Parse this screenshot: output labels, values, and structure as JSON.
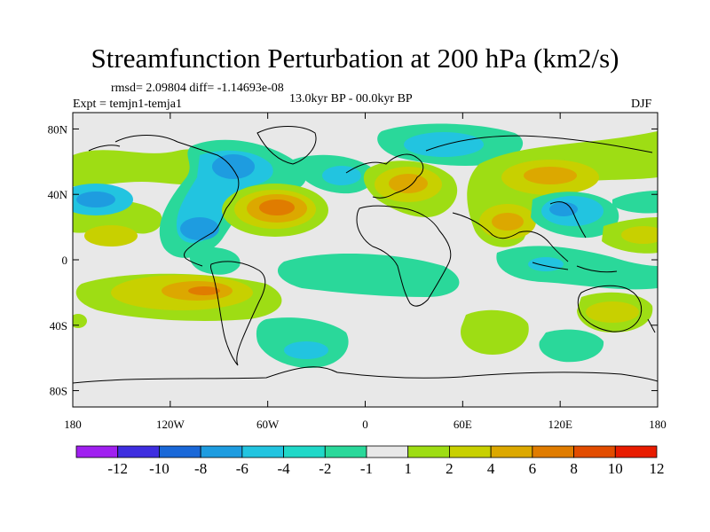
{
  "title": "Streamfunction Perturbation at 200 hPa (km2/s)",
  "stats": "rmsd= 2.09804 diff= -1.14693e-08",
  "experiment": "Expt = temjn1-temja1",
  "period": "13.0kyr BP - 00.0kyr BP",
  "season": "DJF",
  "map_data": {
    "projection": "cylindrical equidistant",
    "lon_range": [
      -180,
      180
    ],
    "lat_range": [
      -90,
      90
    ],
    "x_ticks": [
      "180",
      "120W",
      "60W",
      "0",
      "60E",
      "120E",
      "180"
    ],
    "y_ticks": [
      "80N",
      "40N",
      "0",
      "40S",
      "80S"
    ],
    "colorbar_labels": [
      "-12",
      "-10",
      "-8",
      "-6",
      "-4",
      "-2",
      "-1",
      "1",
      "2",
      "4",
      "6",
      "8",
      "10",
      "12"
    ],
    "colorbar_colors": [
      "#a020f0",
      "#3e2ee0",
      "#1a68d8",
      "#1e9ce0",
      "#22c4e0",
      "#20d8c8",
      "#2ad89a",
      "#e8e8e8",
      "#9edd14",
      "#c8d000",
      "#dca800",
      "#e07c00",
      "#e24c00",
      "#e81c00"
    ]
  }
}
